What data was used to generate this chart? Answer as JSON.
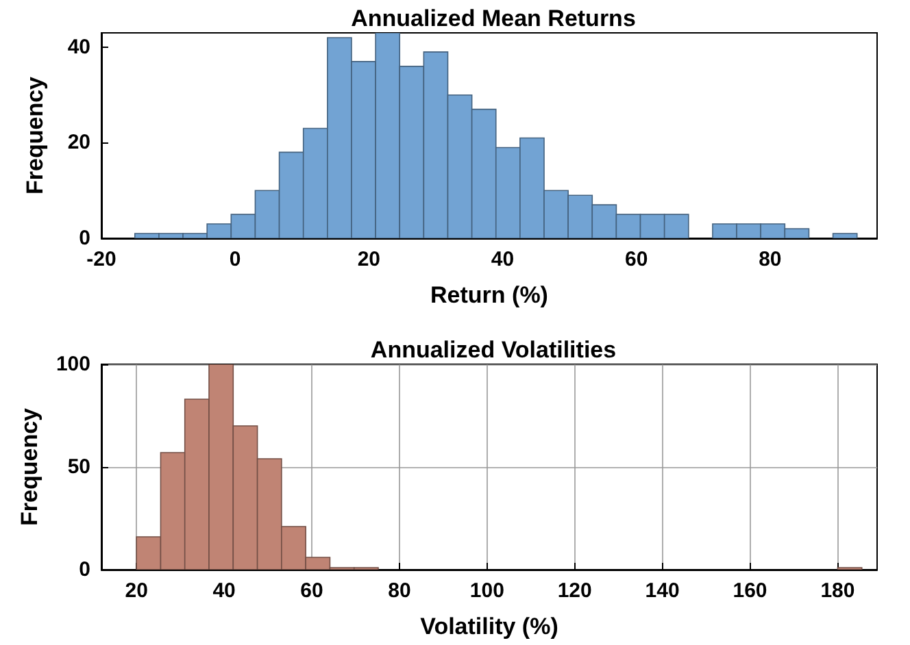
{
  "chart_data": [
    {
      "type": "histogram",
      "title": "Annualized Mean Returns",
      "xlabel": "Return (%)",
      "ylabel": "Frequency",
      "color": "#72a3d3",
      "bins": [
        -15,
        -11.4,
        -7.8,
        -4.2,
        -0.6,
        3.0,
        6.6,
        10.2,
        13.8,
        17.4,
        21.0,
        24.6,
        28.2,
        31.8,
        35.4,
        39.0,
        42.6,
        46.2,
        49.8,
        53.4,
        57.0,
        60.6,
        64.2,
        67.8,
        71.4,
        75.0,
        78.6,
        82.2,
        85.8,
        89.4,
        93.0
      ],
      "values": [
        1,
        1,
        1,
        3,
        5,
        10,
        18,
        23,
        42,
        37,
        43,
        36,
        39,
        30,
        27,
        19,
        21,
        10,
        9,
        7,
        5,
        5,
        5,
        0,
        3,
        3,
        3,
        2,
        0,
        1
      ],
      "xlim": [
        -20,
        96
      ],
      "ylim": [
        0,
        43
      ],
      "xticks": [
        -20,
        0,
        20,
        40,
        60,
        80
      ],
      "yticks": [
        0,
        20,
        40
      ]
    },
    {
      "type": "histogram",
      "title": "Annualized Volatilities",
      "xlabel": "Volatility (%)",
      "ylabel": "Frequency",
      "color": "#c08474",
      "bins": [
        20,
        25.52,
        31.03,
        36.55,
        42.07,
        47.59,
        53.1,
        58.62,
        64.14,
        69.66,
        75.17,
        80.69,
        86.21,
        91.72,
        97.24,
        102.76,
        108.28,
        113.79,
        119.31,
        124.83,
        130.34,
        135.86,
        141.38,
        146.9,
        152.41,
        157.93,
        163.45,
        168.97,
        174.48,
        180,
        185.52
      ],
      "values": [
        16,
        57,
        83,
        100,
        70,
        54,
        21,
        6,
        1,
        1,
        0,
        0,
        0,
        0,
        0,
        0,
        0,
        0,
        0,
        0,
        0,
        0,
        0,
        0,
        0,
        0,
        0,
        0,
        0,
        1
      ],
      "xlim": [
        12,
        189
      ],
      "ylim": [
        0,
        100
      ],
      "xticks": [
        20,
        40,
        60,
        80,
        100,
        120,
        140,
        160,
        180
      ],
      "yticks": [
        0,
        50,
        100
      ],
      "grid": true
    }
  ]
}
